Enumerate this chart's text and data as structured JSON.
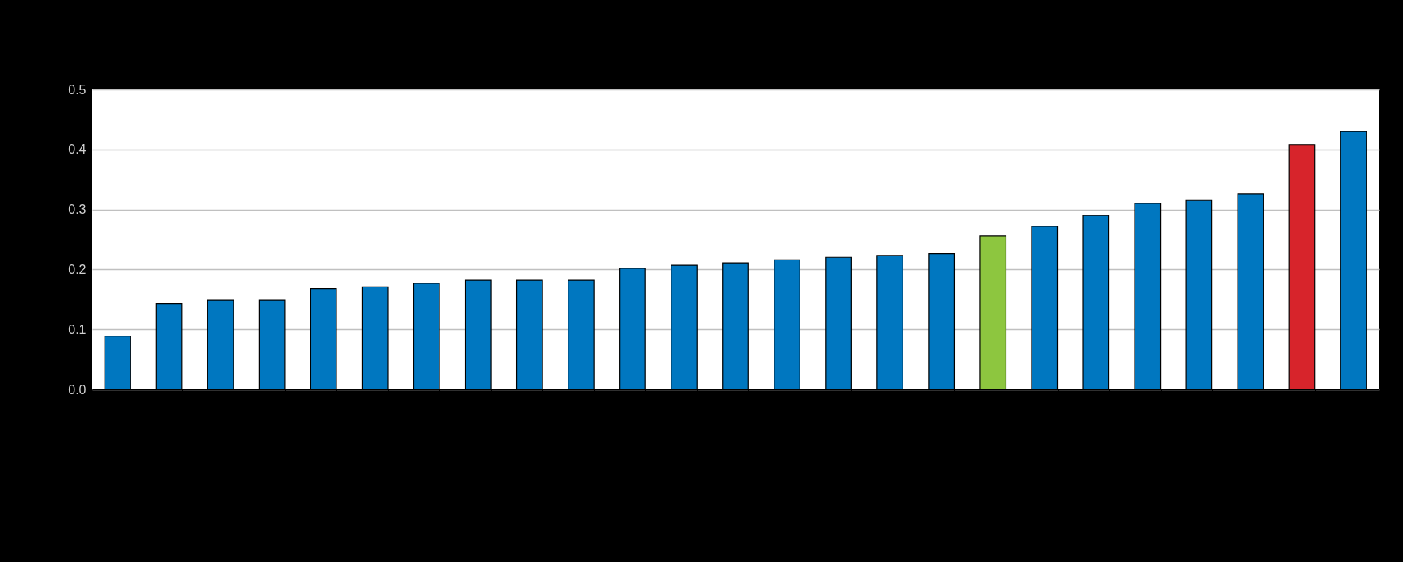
{
  "chart_data": {
    "type": "bar",
    "categories": [
      null,
      null,
      null,
      null,
      null,
      null,
      null,
      null,
      null,
      null,
      null,
      null,
      null,
      null,
      null,
      null,
      null,
      null,
      null,
      null,
      null,
      null,
      null,
      null,
      null
    ],
    "values": [
      0.089,
      0.143,
      0.149,
      0.149,
      0.168,
      0.171,
      0.177,
      0.182,
      0.182,
      0.182,
      0.202,
      0.207,
      0.211,
      0.216,
      0.22,
      0.223,
      0.226,
      0.256,
      0.272,
      0.29,
      0.31,
      0.315,
      0.326,
      0.408,
      0.43
    ],
    "colors": [
      "#0077c0",
      "#0077c0",
      "#0077c0",
      "#0077c0",
      "#0077c0",
      "#0077c0",
      "#0077c0",
      "#0077c0",
      "#0077c0",
      "#0077c0",
      "#0077c0",
      "#0077c0",
      "#0077c0",
      "#0077c0",
      "#0077c0",
      "#0077c0",
      "#0077c0",
      "#8dc63f",
      "#0077c0",
      "#0077c0",
      "#0077c0",
      "#0077c0",
      "#0077c0",
      "#d7242b",
      "#0077c0"
    ],
    "ylim": [
      0,
      0.5
    ],
    "yticks": [
      {
        "value": 0,
        "label": "0.0"
      },
      {
        "value": 0.1,
        "label": "0.1"
      },
      {
        "value": 0.2,
        "label": "0.2"
      },
      {
        "value": 0.3,
        "label": "0.3"
      },
      {
        "value": 0.4,
        "label": "0.4"
      },
      {
        "value": 0.5,
        "label": "0.5"
      }
    ],
    "grid": "y",
    "tick_labels": "y"
  }
}
